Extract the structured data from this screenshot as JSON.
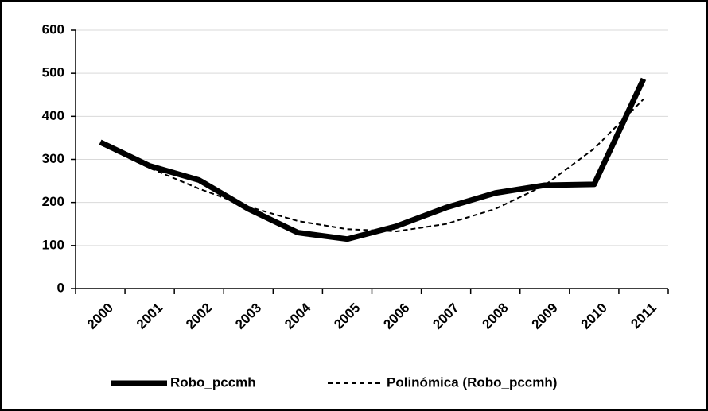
{
  "chart_data": {
    "type": "line",
    "categories": [
      "2000",
      "2001",
      "2002",
      "2003",
      "2004",
      "2005",
      "2006",
      "2007",
      "2008",
      "2009",
      "2010",
      "2011"
    ],
    "series": [
      {
        "name": "Robo_pccmh",
        "color": "#000000",
        "line_style": "solid",
        "values": [
          340,
          285,
          252,
          185,
          130,
          115,
          145,
          188,
          222,
          240,
          242,
          487
        ]
      },
      {
        "name": "Polinómica (Robo_pccmh)",
        "color": "#000000",
        "line_style": "dashed",
        "values": [
          335,
          280,
          232,
          190,
          157,
          138,
          133,
          150,
          185,
          240,
          325,
          440
        ]
      }
    ],
    "ylim": [
      0,
      600
    ],
    "yticks": [
      0,
      100,
      200,
      300,
      400,
      500,
      600
    ],
    "grid": true,
    "legend": "bottom"
  }
}
